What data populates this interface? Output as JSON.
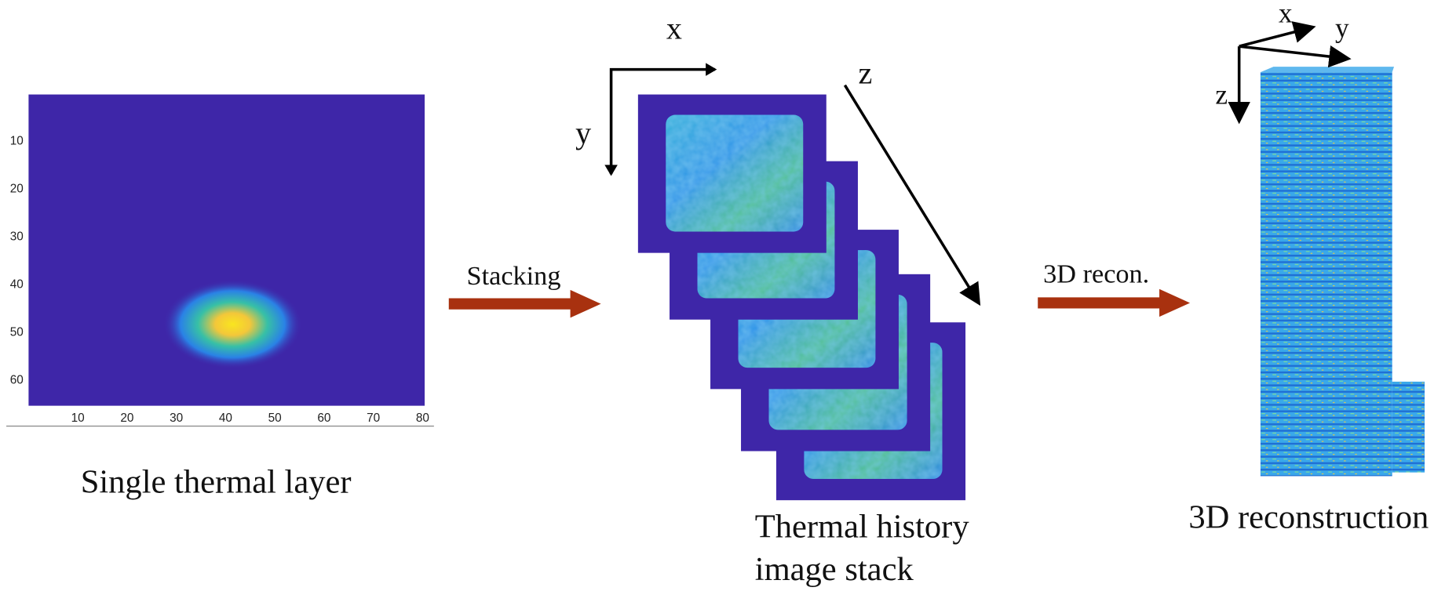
{
  "heatmap": {
    "xticks": [
      10,
      20,
      30,
      40,
      50,
      60,
      70,
      80
    ],
    "yticks": [
      10,
      20,
      30,
      40,
      50,
      60
    ]
  },
  "captions": {
    "single_layer": "Single thermal layer",
    "stack_line1": "Thermal history",
    "stack_line2": "image stack",
    "reconstruction": "3D reconstruction"
  },
  "arrows": {
    "stacking": "Stacking",
    "recon": "3D recon."
  },
  "stack_axes": {
    "x": "x",
    "y": "y",
    "z": "z"
  },
  "tower_axes": {
    "x": "x",
    "y": "y",
    "z": "z"
  }
}
